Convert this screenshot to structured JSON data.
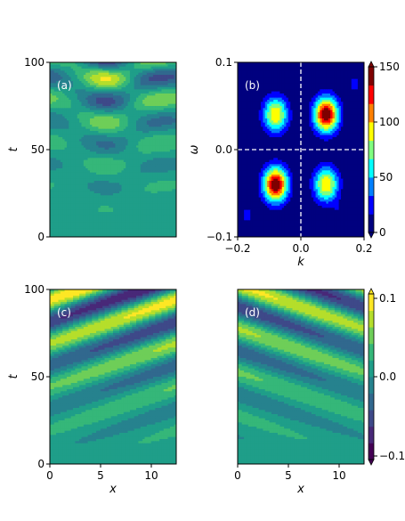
{
  "colors": {
    "viridis": [
      "#440154",
      "#482878",
      "#3e4989",
      "#31688e",
      "#26828e",
      "#1f9e89",
      "#35b779",
      "#6ece58",
      "#b5de2b",
      "#fde725"
    ],
    "jet_levels": [
      "#00007f",
      "#0000ff",
      "#007fff",
      "#00ffff",
      "#7fff7f",
      "#ffff00",
      "#ff7f00",
      "#ff0000",
      "#7f0000"
    ],
    "axes": "#000000",
    "panel_label": "#ffffff",
    "dashed_lines": "#ffffff"
  },
  "chart_data": [
    {
      "panel": "a",
      "label": "(a)",
      "type": "heatmap",
      "ylabel": "t",
      "yticks": [
        "0",
        "50",
        "100"
      ],
      "ylim": [
        0,
        100
      ],
      "xlim": [
        0,
        12.5
      ],
      "colormap": "viridis",
      "pattern": {
        "kind": "standing-oscillation",
        "x_wavelength": 12.5,
        "t_period": 25,
        "growth": "amplitude increasing toward t=100"
      }
    },
    {
      "panel": "b",
      "label": "(b)",
      "type": "heatmap",
      "xlabel": "k",
      "ylabel": "ω",
      "xticks": [
        "−0.2",
        "0.0",
        "0.2"
      ],
      "yticks": [
        "−0.1",
        "0.0",
        "0.1"
      ],
      "xlim": [
        -0.2,
        0.2
      ],
      "ylim": [
        -0.1,
        0.1
      ],
      "colormap": "jet",
      "colorbar_ticks": [
        "0",
        "50",
        "100",
        "150"
      ],
      "colorbar_range": [
        0,
        150
      ],
      "peaks": [
        {
          "k": -0.08,
          "omega": 0.04,
          "value": 100
        },
        {
          "k": 0.08,
          "omega": 0.04,
          "value": 150
        },
        {
          "k": -0.08,
          "omega": -0.04,
          "value": 150
        },
        {
          "k": 0.08,
          "omega": -0.04,
          "value": 100
        }
      ],
      "dashed_lines": {
        "k": 0.0,
        "omega": 0.0
      }
    },
    {
      "panel": "c",
      "label": "(c)",
      "type": "heatmap",
      "xlabel": "x",
      "ylabel": "t",
      "xticks": [
        "0",
        "5",
        "10"
      ],
      "yticks": [
        "0",
        "50",
        "100"
      ],
      "xlim": [
        0,
        12.5
      ],
      "ylim": [
        0,
        100
      ],
      "colormap": "viridis",
      "pattern": {
        "kind": "traveling-wave",
        "direction": "rightward-rising"
      }
    },
    {
      "panel": "d",
      "label": "(d)",
      "type": "heatmap",
      "xlabel": "x",
      "xticks": [
        "0",
        "5",
        "10"
      ],
      "xlim": [
        0,
        12.5
      ],
      "ylim": [
        0,
        100
      ],
      "colormap": "viridis",
      "colorbar_ticks": [
        "−0.1",
        "0.0",
        "0.1"
      ],
      "colorbar_range": [
        -0.1,
        0.1
      ],
      "pattern": {
        "kind": "traveling-wave",
        "direction": "leftward-rising"
      }
    }
  ]
}
